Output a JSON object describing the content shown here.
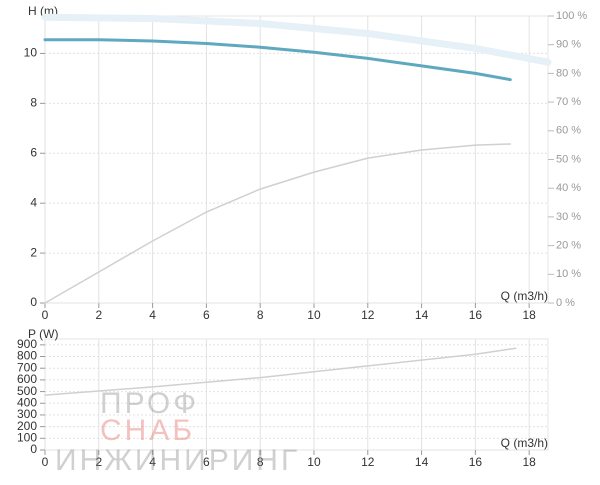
{
  "chart_data": [
    {
      "type": "line",
      "ylabel": "H (m)",
      "xlabel": "Q (m3/h)",
      "xlim": [
        0,
        18.7
      ],
      "xticks": [
        0,
        2,
        4,
        6,
        8,
        10,
        12,
        14,
        16,
        18
      ],
      "ylim": [
        0,
        11.5
      ],
      "yticks": [
        0,
        2,
        4,
        6,
        8,
        10
      ],
      "y2lim": [
        0,
        100
      ],
      "y2ticks": [
        {
          "value": 0,
          "label": "0 %"
        },
        {
          "value": 10,
          "label": "10 %"
        },
        {
          "value": 20,
          "label": "20 %"
        },
        {
          "value": 30,
          "label": "30 %"
        },
        {
          "value": 40,
          "label": "40 %"
        },
        {
          "value": 50,
          "label": "50 %"
        },
        {
          "value": 60,
          "label": "60 %"
        },
        {
          "value": 70,
          "label": "70 %"
        },
        {
          "value": 80,
          "label": "80 %"
        },
        {
          "value": 90,
          "label": "90 %"
        },
        {
          "value": 100,
          "label": "100 %"
        }
      ],
      "grid": true,
      "series": [
        {
          "color": "#e6f0f7",
          "width": 7,
          "x": [
            0,
            4,
            8,
            12,
            16,
            18.7
          ],
          "values": [
            11.45,
            11.4,
            11.2,
            10.8,
            10.2,
            9.65
          ]
        },
        {
          "color": "#d0d0d0",
          "width": 1.5,
          "axis": "y2",
          "x": [
            0,
            2,
            4,
            6,
            8,
            10,
            12,
            14,
            16,
            17.3
          ],
          "values": [
            0,
            10.8,
            21.6,
            31.7,
            39.7,
            45.6,
            50.5,
            53.3,
            55,
            55.4
          ]
        },
        {
          "color": "#5fa8c0",
          "width": 3,
          "x": [
            0,
            2,
            4,
            6,
            8,
            10,
            12,
            14,
            16,
            17.3
          ],
          "values": [
            10.55,
            10.55,
            10.5,
            10.4,
            10.25,
            10.05,
            9.8,
            9.5,
            9.2,
            8.95
          ]
        }
      ]
    },
    {
      "type": "line",
      "ylabel": "P (W)",
      "xlabel": "Q (m3/h)",
      "xlim": [
        0,
        18.7
      ],
      "xticks": [
        0,
        2,
        4,
        6,
        8,
        10,
        12,
        14,
        16,
        18
      ],
      "ylim": [
        0,
        950
      ],
      "yticks": [
        0,
        100,
        200,
        300,
        400,
        500,
        600,
        700,
        800,
        900
      ],
      "grid": true,
      "series": [
        {
          "color": "#d0d0d0",
          "width": 1.5,
          "x": [
            0,
            4,
            8,
            12,
            16,
            17.5
          ],
          "values": [
            470,
            540,
            620,
            720,
            820,
            870
          ]
        }
      ]
    }
  ],
  "watermark": [
    "ПРОФ",
    "СНАБ",
    "ИНЖИНИРИНГ"
  ]
}
